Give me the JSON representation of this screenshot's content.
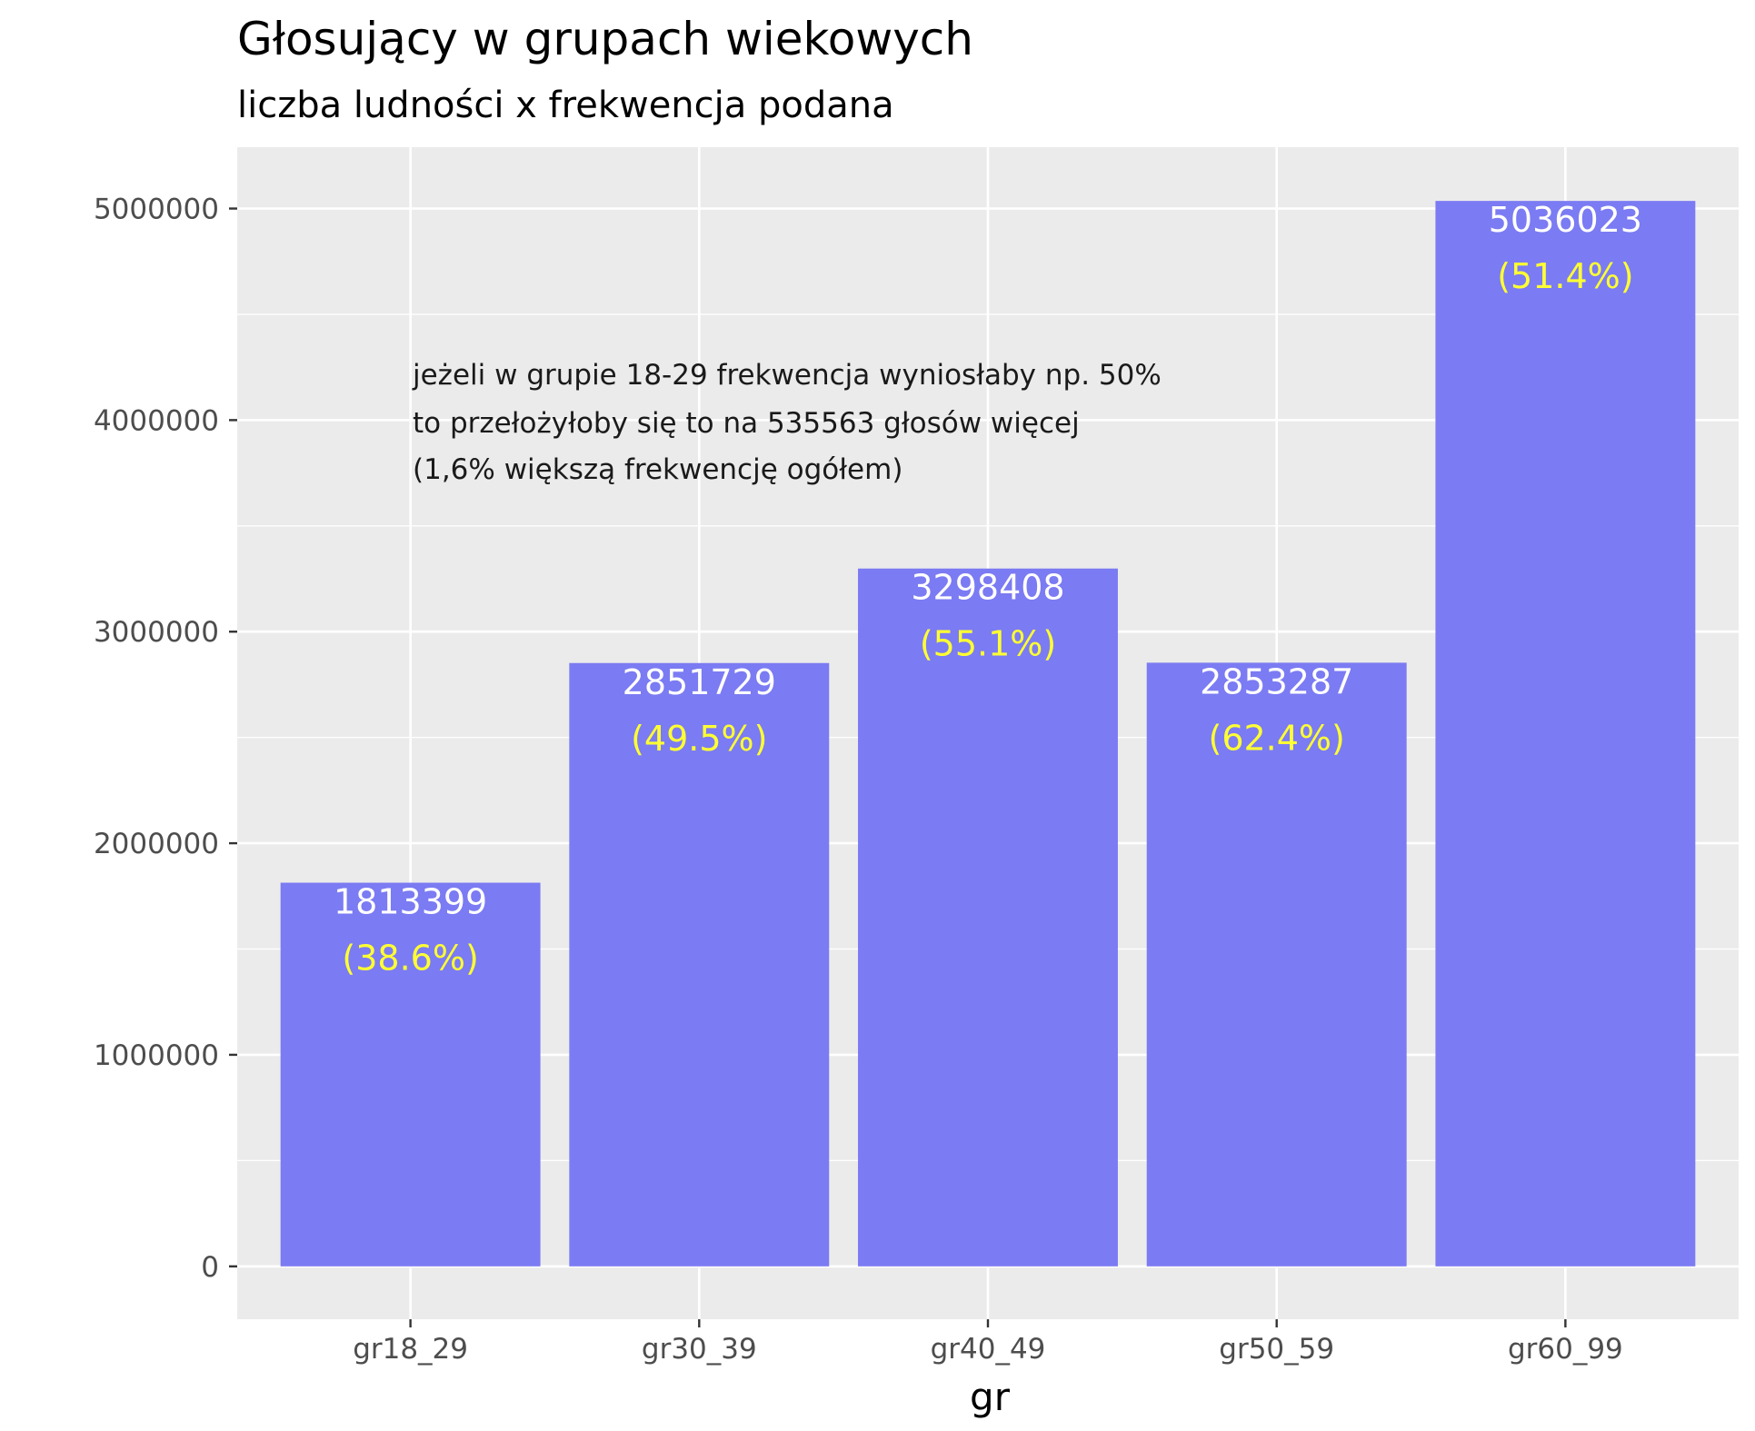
{
  "chart_data": {
    "type": "bar",
    "title": "Głosujący w grupach wiekowych",
    "subtitle": "liczba ludności x frekwencja podana",
    "xlabel": "gr",
    "ylabel": "",
    "categories": [
      "gr18_29",
      "gr30_39",
      "gr40_49",
      "gr50_59",
      "gr60_99"
    ],
    "values": [
      1813399,
      2851729,
      3298408,
      2853287,
      5036023
    ],
    "value_labels": [
      "1813399",
      "2851729",
      "3298408",
      "2853287",
      "5036023"
    ],
    "percent_labels": [
      "(38.6%)",
      "(49.5%)",
      "(55.1%)",
      "(62.4%)",
      "(51.4%)"
    ],
    "ylim": [
      -250000,
      5290000
    ],
    "yticks": [
      0,
      1000000,
      2000000,
      3000000,
      4000000,
      5000000
    ],
    "ytick_labels": [
      "0",
      "1000000",
      "2000000",
      "3000000",
      "4000000",
      "5000000"
    ],
    "grid": true,
    "annotation": [
      "jeżeli w grupie 18-29 frekwencja wyniosłaby np. 50%",
      "to przełożyłoby się to na 535563 głosów więcej",
      "(1,6% większą frekwencję ogółem)"
    ],
    "colors": {
      "bar": "#7777f3",
      "value_text": "#ffffff",
      "percent_text": "#ffff33",
      "panel": "#ebebeb",
      "grid": "#ffffff"
    }
  }
}
